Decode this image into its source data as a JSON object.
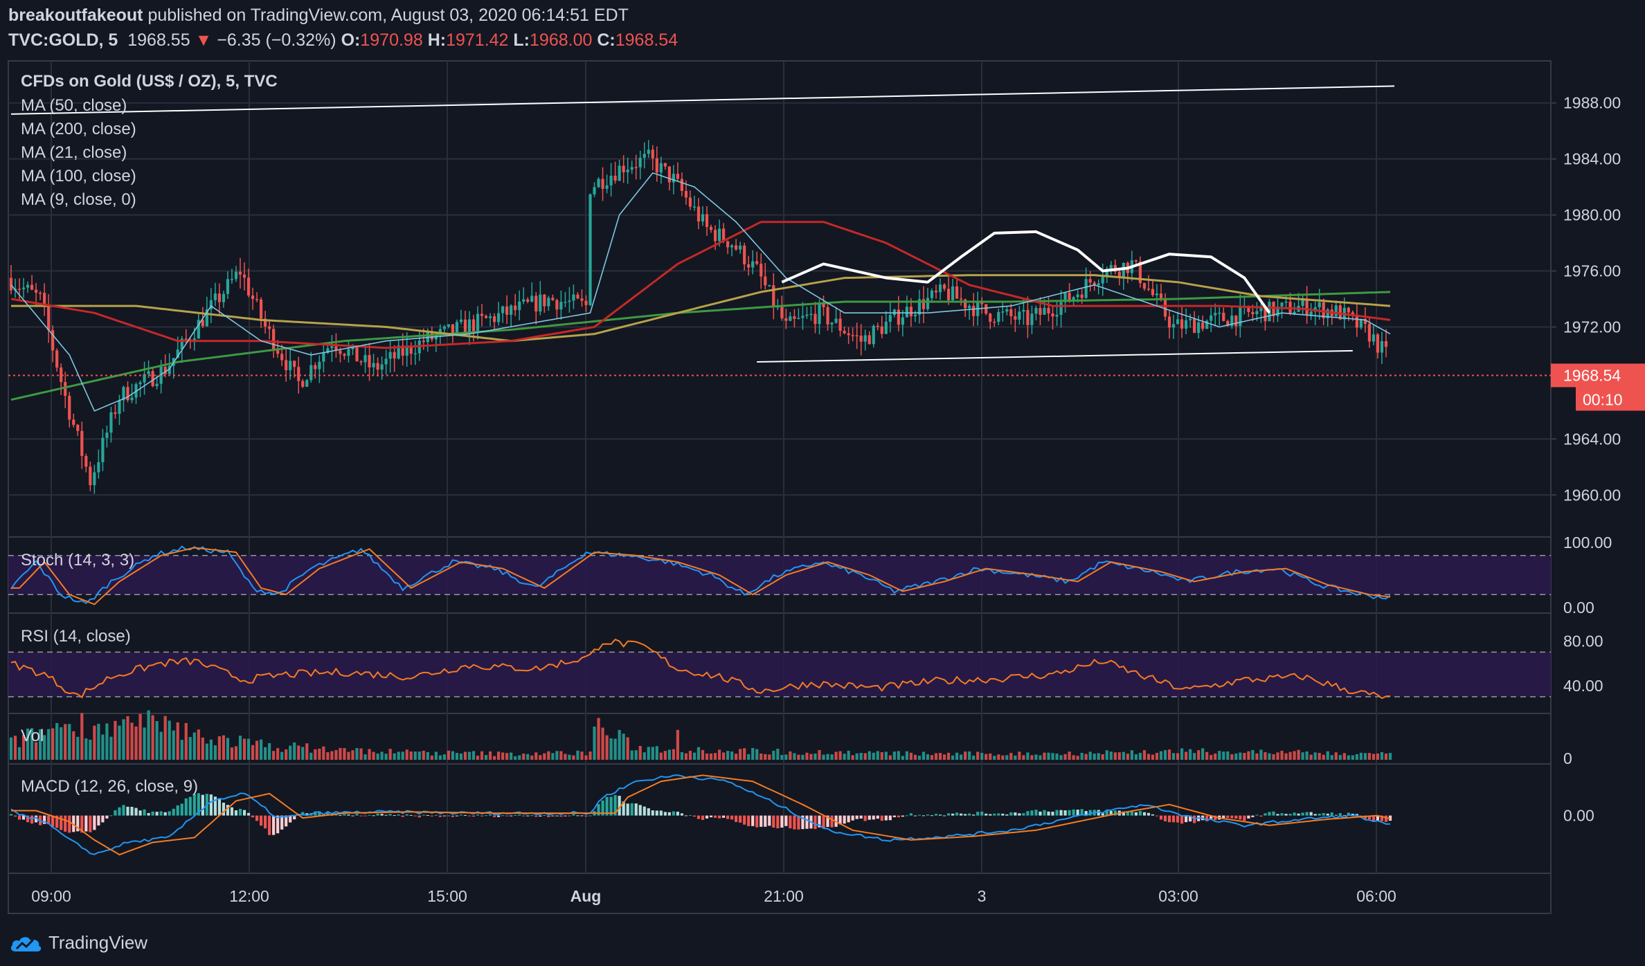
{
  "header": {
    "author": "breakoutfakeout",
    "published": "published on TradingView.com, August 03, 2020 06:14:51 EDT",
    "symbol": "TVC:GOLD, 5",
    "last": "1968.55",
    "arrow": "▼",
    "change": "−6.35 (−0.32%)",
    "o_label": "O:",
    "o_value": "1970.98",
    "h_label": "H:",
    "h_value": "1971.42",
    "l_label": "L:",
    "l_value": "1968.00",
    "c_label": "C:",
    "c_value": "1968.54"
  },
  "legend": {
    "title": "CFDs on Gold (US$ / OZ), 5, TVC",
    "ma50": "MA (50, close)",
    "ma200": "MA (200, close)",
    "ma21": "MA (21, close)",
    "ma100": "MA (100, close)",
    "ma9": "MA (9, close, 0)",
    "stoch": "Stoch (14, 3, 3)",
    "rsi": "RSI (14, close)",
    "vol": "Vol",
    "macd": "MACD (12, 26, close, 9)"
  },
  "price_badge": {
    "value": "1968.54",
    "countdown": "00:10"
  },
  "footer": {
    "brand": "TradingView"
  },
  "colors": {
    "background": "#131722",
    "up": "#26a69a",
    "down": "#ef5350",
    "ma50": "#b7a24a",
    "ma200": "#3e9a42",
    "ma21": "#c62828",
    "ma9": "#7ec8e3",
    "rsi": "#f57c22",
    "stoch_k": "#2196f3",
    "stoch_d": "#f57c22",
    "band": "#2a1a4a"
  },
  "chart_data": [
    {
      "type": "candlestick",
      "panel": "price",
      "title": "CFDs on Gold (US$ / OZ), 5, TVC",
      "x_ticks": [
        "09:00",
        "12:00",
        "15:00",
        "Aug",
        "21:00",
        "3",
        "03:00",
        "06:00"
      ],
      "y_ticks": [
        "1988.00",
        "1984.00",
        "1980.00",
        "1976.00",
        "1972.00",
        "1964.00",
        "1960.00"
      ],
      "ylim": [
        1957,
        1991
      ],
      "last_price": 1968.54,
      "anchors_price": [
        [
          0,
          1975.5
        ],
        [
          8,
          1974
        ],
        [
          14,
          1967
        ],
        [
          20,
          1961
        ],
        [
          27,
          1967
        ],
        [
          38,
          1969
        ],
        [
          48,
          1973
        ],
        [
          56,
          1976
        ],
        [
          62,
          1972
        ],
        [
          70,
          1968
        ],
        [
          78,
          1971
        ],
        [
          88,
          1969
        ],
        [
          100,
          1971
        ],
        [
          110,
          1972
        ],
        [
          120,
          1973
        ],
        [
          130,
          1974
        ],
        [
          139,
          1973.5
        ],
        [
          140,
          1982
        ],
        [
          148,
          1983.5
        ],
        [
          154,
          1984
        ],
        [
          160,
          1982.5
        ],
        [
          168,
          1979
        ],
        [
          174,
          1978
        ],
        [
          180,
          1976
        ],
        [
          187,
          1972
        ],
        [
          195,
          1973
        ],
        [
          205,
          1971
        ],
        [
          215,
          1973
        ],
        [
          225,
          1974.5
        ],
        [
          235,
          1973
        ],
        [
          245,
          1972.5
        ],
        [
          255,
          1974
        ],
        [
          263,
          1976
        ],
        [
          270,
          1976.5
        ],
        [
          280,
          1972
        ],
        [
          290,
          1972.5
        ],
        [
          300,
          1973
        ],
        [
          312,
          1973.5
        ],
        [
          320,
          1973
        ],
        [
          327,
          1971.5
        ],
        [
          331,
          1970
        ]
      ],
      "anchors_ma50": [
        [
          0,
          1973.5
        ],
        [
          30,
          1973.5
        ],
        [
          60,
          1972.5
        ],
        [
          90,
          1972
        ],
        [
          120,
          1971
        ],
        [
          140,
          1971.5
        ],
        [
          160,
          1973
        ],
        [
          180,
          1974.5
        ],
        [
          200,
          1975.5
        ],
        [
          230,
          1975.7
        ],
        [
          260,
          1975.7
        ],
        [
          280,
          1975.2
        ],
        [
          300,
          1974.2
        ],
        [
          331,
          1973.5
        ]
      ],
      "anchors_ma200": [
        [
          0,
          1966.8
        ],
        [
          40,
          1969.5
        ],
        [
          80,
          1971
        ],
        [
          120,
          1971.8
        ],
        [
          160,
          1973
        ],
        [
          200,
          1973.8
        ],
        [
          240,
          1973.8
        ],
        [
          280,
          1974
        ],
        [
          310,
          1974.3
        ],
        [
          331,
          1974.5
        ]
      ],
      "anchors_ma21": [
        [
          0,
          1974
        ],
        [
          20,
          1973
        ],
        [
          40,
          1971
        ],
        [
          60,
          1971
        ],
        [
          90,
          1970.5
        ],
        [
          120,
          1971
        ],
        [
          140,
          1972
        ],
        [
          160,
          1976.5
        ],
        [
          180,
          1979.5
        ],
        [
          195,
          1979.5
        ],
        [
          210,
          1978
        ],
        [
          230,
          1975
        ],
        [
          250,
          1973.5
        ],
        [
          270,
          1973.5
        ],
        [
          290,
          1973.5
        ],
        [
          310,
          1973.3
        ],
        [
          331,
          1972.5
        ]
      ],
      "anchors_ma9": [
        [
          0,
          1975
        ],
        [
          14,
          1970
        ],
        [
          20,
          1966
        ],
        [
          28,
          1967
        ],
        [
          38,
          1969
        ],
        [
          48,
          1973.5
        ],
        [
          60,
          1971
        ],
        [
          72,
          1970
        ],
        [
          90,
          1971
        ],
        [
          110,
          1971.5
        ],
        [
          139,
          1973
        ],
        [
          146,
          1980
        ],
        [
          154,
          1983
        ],
        [
          164,
          1982
        ],
        [
          174,
          1979.5
        ],
        [
          186,
          1975.5
        ],
        [
          200,
          1973
        ],
        [
          220,
          1973
        ],
        [
          240,
          1973.5
        ],
        [
          260,
          1975
        ],
        [
          275,
          1973.5
        ],
        [
          290,
          1972
        ],
        [
          305,
          1973
        ],
        [
          325,
          1972.5
        ],
        [
          331,
          1971.5
        ]
      ],
      "trendlines": [
        {
          "from": [
            0,
            1987.2
          ],
          "to": [
            332,
            1989.2
          ]
        },
        {
          "from": [
            179,
            1969.5
          ],
          "to": [
            322,
            1970.3
          ]
        }
      ],
      "curve_annotation": [
        [
          185,
          1975.2
        ],
        [
          195,
          1976.5
        ],
        [
          210,
          1975.5
        ],
        [
          220,
          1975.2
        ],
        [
          228,
          1977
        ],
        [
          236,
          1978.7
        ],
        [
          246,
          1978.8
        ],
        [
          256,
          1977.5
        ],
        [
          262,
          1976
        ],
        [
          268,
          1976.2
        ],
        [
          278,
          1977.2
        ],
        [
          288,
          1977
        ],
        [
          296,
          1975.5
        ],
        [
          302,
          1973
        ]
      ]
    },
    {
      "type": "line",
      "panel": "stoch",
      "title": "Stoch (14, 3, 3)",
      "y_ticks": [
        "100.00",
        "0.00"
      ],
      "ylim": [
        0,
        100
      ],
      "bands": [
        80,
        20
      ],
      "anchors_k": [
        [
          0,
          30
        ],
        [
          6,
          70
        ],
        [
          12,
          20
        ],
        [
          18,
          5
        ],
        [
          24,
          40
        ],
        [
          34,
          80
        ],
        [
          42,
          92
        ],
        [
          52,
          85
        ],
        [
          58,
          30
        ],
        [
          64,
          20
        ],
        [
          72,
          60
        ],
        [
          84,
          90
        ],
        [
          94,
          30
        ],
        [
          106,
          70
        ],
        [
          116,
          60
        ],
        [
          126,
          30
        ],
        [
          138,
          85
        ],
        [
          148,
          80
        ],
        [
          158,
          70
        ],
        [
          168,
          50
        ],
        [
          176,
          20
        ],
        [
          184,
          50
        ],
        [
          194,
          70
        ],
        [
          204,
          50
        ],
        [
          212,
          25
        ],
        [
          222,
          40
        ],
        [
          232,
          60
        ],
        [
          244,
          50
        ],
        [
          254,
          40
        ],
        [
          262,
          70
        ],
        [
          274,
          55
        ],
        [
          282,
          40
        ],
        [
          294,
          55
        ],
        [
          304,
          60
        ],
        [
          314,
          35
        ],
        [
          324,
          20
        ],
        [
          331,
          15
        ]
      ]
    },
    {
      "type": "line",
      "panel": "rsi",
      "title": "RSI (14, close)",
      "y_ticks": [
        "80.00",
        "40.00"
      ],
      "ylim": [
        20,
        100
      ],
      "bands": [
        70,
        30
      ],
      "anchors": [
        [
          0,
          60
        ],
        [
          8,
          50
        ],
        [
          16,
          30
        ],
        [
          24,
          48
        ],
        [
          36,
          60
        ],
        [
          44,
          62
        ],
        [
          56,
          45
        ],
        [
          66,
          50
        ],
        [
          80,
          52
        ],
        [
          96,
          48
        ],
        [
          110,
          58
        ],
        [
          126,
          55
        ],
        [
          139,
          66
        ],
        [
          142,
          80
        ],
        [
          152,
          75
        ],
        [
          160,
          55
        ],
        [
          170,
          48
        ],
        [
          180,
          35
        ],
        [
          192,
          42
        ],
        [
          208,
          38
        ],
        [
          222,
          44
        ],
        [
          236,
          46
        ],
        [
          250,
          50
        ],
        [
          262,
          62
        ],
        [
          272,
          48
        ],
        [
          282,
          36
        ],
        [
          296,
          45
        ],
        [
          310,
          48
        ],
        [
          322,
          35
        ],
        [
          331,
          28
        ]
      ]
    },
    {
      "type": "bar",
      "panel": "volume",
      "title": "Vol",
      "y_ticks": [
        "0"
      ],
      "anchors": [
        [
          0,
          28
        ],
        [
          8,
          48
        ],
        [
          14,
          62
        ],
        [
          24,
          55
        ],
        [
          34,
          60
        ],
        [
          46,
          40
        ],
        [
          60,
          25
        ],
        [
          80,
          16
        ],
        [
          100,
          12
        ],
        [
          120,
          10
        ],
        [
          139,
          12
        ],
        [
          140,
          60
        ],
        [
          150,
          20
        ],
        [
          160,
          18
        ],
        [
          180,
          14
        ],
        [
          200,
          12
        ],
        [
          220,
          10
        ],
        [
          240,
          10
        ],
        [
          260,
          12
        ],
        [
          280,
          14
        ],
        [
          300,
          13
        ],
        [
          331,
          9
        ]
      ],
      "spike": {
        "x": 160,
        "value": 48
      }
    },
    {
      "type": "bar",
      "panel": "macd",
      "title": "MACD (12, 26, close, 9)",
      "y_ticks": [
        "0.00"
      ],
      "ylim": [
        -4.5,
        4
      ],
      "anchors_macd": [
        [
          0,
          0.4
        ],
        [
          8,
          -0.5
        ],
        [
          14,
          -2
        ],
        [
          20,
          -3.2
        ],
        [
          28,
          -2.2
        ],
        [
          38,
          -1.8
        ],
        [
          48,
          1.2
        ],
        [
          56,
          1.8
        ],
        [
          64,
          -0.2
        ],
        [
          74,
          0.2
        ],
        [
          90,
          0.3
        ],
        [
          110,
          0.2
        ],
        [
          139,
          0.2
        ],
        [
          142,
          1.5
        ],
        [
          150,
          2.8
        ],
        [
          160,
          3.3
        ],
        [
          172,
          2.8
        ],
        [
          184,
          0.9
        ],
        [
          196,
          -1.2
        ],
        [
          210,
          -2
        ],
        [
          225,
          -1.7
        ],
        [
          240,
          -1.2
        ],
        [
          260,
          0.2
        ],
        [
          272,
          0.9
        ],
        [
          284,
          -0.2
        ],
        [
          296,
          -0.8
        ],
        [
          310,
          -0.3
        ],
        [
          322,
          0
        ],
        [
          331,
          -0.8
        ]
      ],
      "signal_lag": 6
    }
  ]
}
